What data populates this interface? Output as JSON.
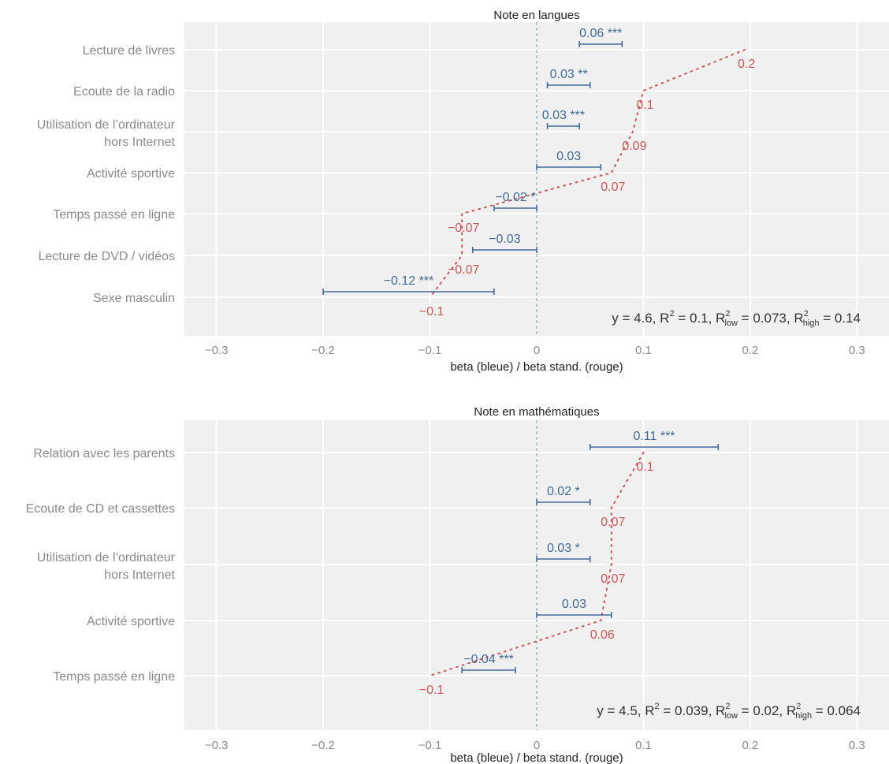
{
  "chart_data": [
    {
      "type": "forest",
      "title": "Note en langues",
      "xlabel": "beta (bleue) / beta stand. (rouge)",
      "xlim": [
        -0.33,
        0.33
      ],
      "xticks": [
        -0.3,
        -0.2,
        -0.1,
        0,
        0.1,
        0.2,
        0.3
      ],
      "xtick_labels": [
        "−0.3",
        "−0.2",
        "−0.1",
        "0",
        "0.1",
        "0.2",
        "0.3"
      ],
      "categories": [
        [
          "Lecture de livres"
        ],
        [
          "Ecoute de la radio"
        ],
        [
          "Utilisation de l’ordinateur",
          "hors Internet"
        ],
        [
          "Activité sportive"
        ],
        [
          "Temps passé en ligne"
        ],
        [
          "Lecture de DVD / vidéos"
        ],
        [
          "Sexe masculin"
        ]
      ],
      "beta": [
        0.06,
        0.03,
        0.03,
        0.03,
        -0.02,
        -0.03,
        -0.12
      ],
      "ci_low": [
        0.04,
        0.01,
        0.01,
        0.0,
        -0.04,
        -0.06,
        -0.2
      ],
      "ci_high": [
        0.08,
        0.05,
        0.04,
        0.06,
        0.0,
        0.0,
        -0.04
      ],
      "beta_labels": [
        "0.06 ***",
        "0.03 **",
        "0.03 ***",
        "0.03",
        "−0.02 *",
        "−0.03",
        "−0.12 ***"
      ],
      "std_beta": [
        0.195,
        0.1,
        0.09,
        0.07,
        -0.07,
        -0.07,
        -0.1
      ],
      "std_labels": [
        "0.2",
        "0.1",
        "0.09",
        "0.07",
        "−0.07",
        "−0.07",
        "−0.1"
      ],
      "annotation": {
        "y": "y = 4.6,",
        "r2": "R",
        "r2_val": " = 0.1,",
        "r2low": "R",
        "r2low_sub": "low",
        "r2low_val": " = 0.073,",
        "r2high": "R",
        "r2high_sub": "high",
        "r2high_val": " = 0.14",
        "sup": "2"
      }
    },
    {
      "type": "forest",
      "title": "Note en mathématiques",
      "xlabel": "beta (bleue) / beta stand. (rouge)",
      "xlim": [
        -0.33,
        0.33
      ],
      "xticks": [
        -0.3,
        -0.2,
        -0.1,
        0,
        0.1,
        0.2,
        0.3
      ],
      "xtick_labels": [
        "−0.3",
        "−0.2",
        "−0.1",
        "0",
        "0.1",
        "0.2",
        "0.3"
      ],
      "categories": [
        [
          "Relation avec les parents"
        ],
        [
          "Ecoute de CD et cassettes"
        ],
        [
          "Utilisation de l’ordinateur",
          "hors Internet"
        ],
        [
          "Activité sportive"
        ],
        [
          "Temps passé en ligne"
        ]
      ],
      "beta": [
        0.11,
        0.02,
        0.03,
        0.03,
        -0.04
      ],
      "ci_low": [
        0.05,
        0.0,
        0.0,
        0.0,
        -0.07
      ],
      "ci_high": [
        0.17,
        0.05,
        0.05,
        0.07,
        -0.02
      ],
      "beta_labels": [
        "0.11 ***",
        "0.02 *",
        "0.03 *",
        "0.03",
        "−0.04 ***"
      ],
      "std_beta": [
        0.1,
        0.07,
        0.07,
        0.06,
        -0.1
      ],
      "std_labels": [
        "0.1",
        "0.07",
        "0.07",
        "0.06",
        "−0.1"
      ],
      "annotation": {
        "y": "y = 4.5,",
        "r2": "R",
        "r2_val": " = 0.039,",
        "r2low": "R",
        "r2low_sub": "low",
        "r2low_val": " = 0.02,",
        "r2high": "R",
        "r2high_sub": "high",
        "r2high_val": " = 0.064",
        "sup": "2"
      }
    }
  ]
}
